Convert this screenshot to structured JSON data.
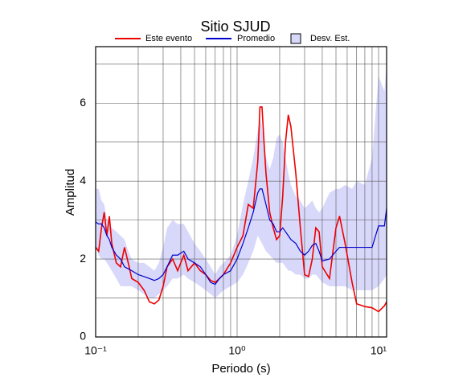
{
  "chart_data": {
    "type": "line",
    "title": "Sitio SJUD",
    "xlabel": "Periodo (s)",
    "ylabel": "Amplitud",
    "xscale": "log",
    "grid": true,
    "xlim": [
      0.1,
      11.4
    ],
    "ylim": [
      0,
      7.45
    ],
    "xticks": [
      {
        "value": 0.1,
        "label": "10⁻¹"
      },
      {
        "value": 1,
        "label": "10⁰"
      },
      {
        "value": 10,
        "label": "10¹"
      }
    ],
    "xminorticks": [
      0.2,
      0.3,
      0.4,
      0.5,
      0.6,
      0.7,
      0.8,
      0.9,
      2,
      3,
      4,
      5,
      6,
      7,
      8,
      9
    ],
    "yticks": [
      0,
      2,
      4,
      6
    ],
    "yminorticks": [
      1,
      3,
      5,
      7
    ],
    "x": [
      0.1,
      0.105,
      0.11,
      0.115,
      0.12,
      0.125,
      0.13,
      0.14,
      0.15,
      0.16,
      0.17,
      0.18,
      0.2,
      0.22,
      0.24,
      0.26,
      0.28,
      0.3,
      0.32,
      0.35,
      0.38,
      0.42,
      0.45,
      0.5,
      0.55,
      0.6,
      0.65,
      0.7,
      0.75,
      0.8,
      0.9,
      1.0,
      1.1,
      1.2,
      1.3,
      1.4,
      1.45,
      1.5,
      1.55,
      1.6,
      1.7,
      1.8,
      1.9,
      2.0,
      2.1,
      2.2,
      2.3,
      2.4,
      2.6,
      2.8,
      3.0,
      3.2,
      3.4,
      3.6,
      3.8,
      4.0,
      4.5,
      5.0,
      5.3,
      5.8,
      6.5,
      7,
      8,
      9,
      10,
      11,
      11.4
    ],
    "band": {
      "name": "Desv. Est.",
      "color": "#d8d8fb",
      "lower": [
        2.3,
        2.1,
        2.0,
        2.0,
        1.9,
        1.8,
        1.7,
        1.5,
        1.3,
        1.3,
        1.3,
        1.3,
        1.2,
        1.1,
        1.0,
        1.0,
        1.1,
        1.2,
        1.3,
        1.5,
        1.5,
        1.6,
        1.5,
        1.4,
        1.3,
        1.2,
        1.1,
        1.0,
        1.1,
        1.2,
        1.3,
        1.4,
        1.6,
        1.9,
        2.2,
        2.6,
        2.5,
        2.4,
        2.3,
        2.2,
        2.1,
        2.0,
        1.9,
        1.9,
        1.9,
        1.8,
        1.7,
        1.7,
        1.6,
        1.6,
        1.5,
        1.5,
        1.6,
        1.6,
        1.5,
        1.4,
        1.3,
        1.3,
        1.3,
        1.3,
        1.2,
        1.2,
        1.2,
        1.2,
        1.3,
        1.5,
        1.6
      ],
      "upper": [
        3.8,
        3.8,
        3.5,
        3.4,
        3.0,
        2.9,
        2.8,
        2.7,
        2.6,
        2.5,
        2.2,
        2.0,
        1.9,
        1.9,
        1.8,
        1.7,
        1.9,
        2.3,
        2.8,
        3.0,
        2.9,
        2.9,
        2.7,
        2.4,
        2.2,
        2.0,
        1.8,
        1.6,
        1.8,
        1.9,
        2.1,
        2.6,
        3.4,
        4.0,
        4.6,
        5.3,
        5.6,
        5.4,
        5.0,
        4.6,
        4.3,
        4.6,
        5.1,
        5.2,
        5.0,
        4.6,
        4.2,
        3.9,
        3.6,
        3.5,
        3.3,
        3.4,
        3.5,
        3.3,
        3.2,
        3.3,
        3.7,
        3.8,
        3.8,
        3.9,
        3.8,
        4.0,
        3.9,
        4.6,
        6.7,
        6.3,
        7.0
      ]
    },
    "series": [
      {
        "name": "Este evento",
        "color": "#ee0000",
        "values": [
          2.3,
          2.2,
          2.8,
          3.2,
          2.6,
          3.1,
          2.4,
          1.9,
          1.8,
          2.3,
          1.9,
          1.5,
          1.4,
          1.2,
          0.9,
          0.85,
          0.95,
          1.3,
          1.8,
          2.0,
          1.7,
          2.1,
          1.7,
          1.9,
          1.7,
          1.6,
          1.45,
          1.4,
          1.5,
          1.6,
          1.9,
          2.3,
          2.6,
          3.4,
          3.3,
          4.5,
          5.9,
          5.9,
          5.0,
          4.2,
          3.2,
          2.8,
          2.5,
          2.6,
          3.6,
          5.0,
          5.7,
          5.4,
          4.2,
          2.8,
          1.6,
          1.55,
          2.0,
          2.8,
          2.7,
          1.8,
          1.5,
          2.8,
          3.1,
          2.4,
          1.4,
          0.85,
          0.78,
          0.75,
          0.65,
          0.8,
          0.9
        ]
      },
      {
        "name": "Promedio",
        "color": "#0000cc",
        "values": [
          2.95,
          2.9,
          2.9,
          2.8,
          2.6,
          2.5,
          2.3,
          2.1,
          2.0,
          1.8,
          1.75,
          1.7,
          1.6,
          1.55,
          1.5,
          1.45,
          1.5,
          1.6,
          1.8,
          2.1,
          2.1,
          2.2,
          2.0,
          1.9,
          1.8,
          1.6,
          1.4,
          1.35,
          1.5,
          1.6,
          1.7,
          2.0,
          2.4,
          2.8,
          3.2,
          3.7,
          3.8,
          3.8,
          3.6,
          3.4,
          3.0,
          2.9,
          2.7,
          2.7,
          2.8,
          2.7,
          2.6,
          2.5,
          2.4,
          2.2,
          2.1,
          2.2,
          2.35,
          2.4,
          2.2,
          1.95,
          2.0,
          2.2,
          2.3,
          2.3,
          2.3,
          2.3,
          2.3,
          2.3,
          2.85,
          2.85,
          3.3
        ]
      }
    ]
  }
}
